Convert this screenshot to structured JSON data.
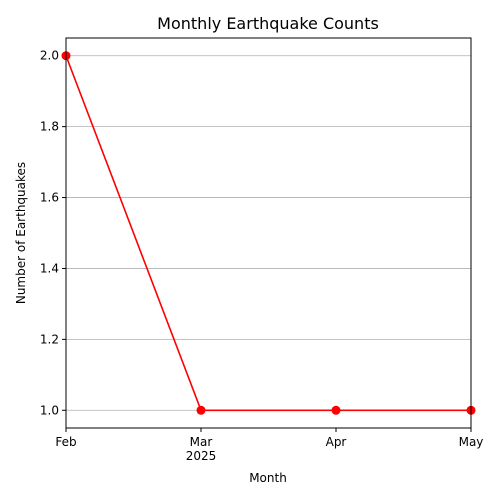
{
  "chart_data": {
    "type": "line",
    "title": "Monthly Earthquake Counts",
    "xlabel": "Month",
    "ylabel": "Number of Earthquakes",
    "categories": [
      "Feb",
      "Mar",
      "Apr",
      "May"
    ],
    "x_year_label": "2025",
    "series": [
      {
        "values": [
          2.0,
          1.0,
          1.0,
          1.0
        ]
      }
    ],
    "ylim": [
      0.95,
      2.05
    ],
    "y_ticks": [
      "1.0",
      "1.2",
      "1.4",
      "1.6",
      "1.8",
      "2.0"
    ],
    "grid": "horizontal",
    "color": "#ff0000"
  }
}
